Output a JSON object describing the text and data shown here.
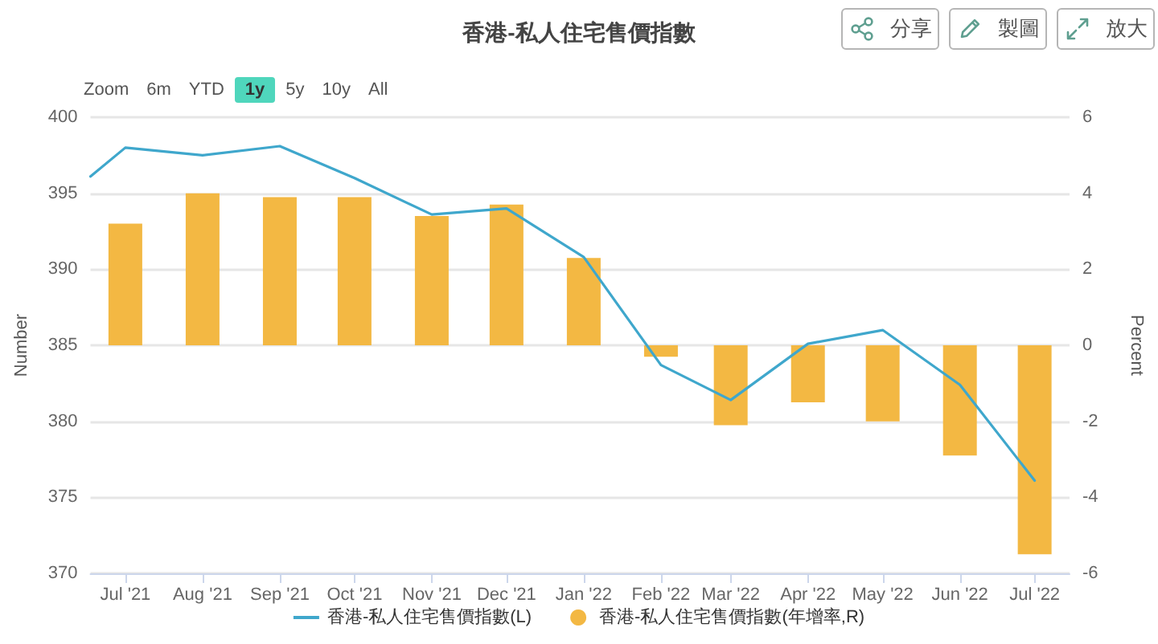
{
  "chart_data": {
    "type": "line",
    "title": "香港-私人住宅售價指數",
    "ylabel": "Number",
    "y2label": "Percent",
    "annotations": [
      "Zoom",
      "6m",
      "YTD",
      "1y",
      "5y",
      "10y",
      "All",
      "分享",
      "製圖",
      "放大"
    ],
    "x": [
      "2021-07",
      "2021-08",
      "2021-09",
      "2021-10",
      "2021-11",
      "2021-12",
      "2022-01",
      "2022-02",
      "2022-03",
      "2022-04",
      "2022-05",
      "2022-06",
      "2022-07"
    ],
    "series": [
      {
        "name": "香港-私人住宅售價指數(L)",
        "color": "#3fa7cc",
        "x": [
          "2021-06-17",
          "2021-07",
          "2021-08",
          "2021-09",
          "2021-10",
          "2021-11",
          "2021-12",
          "2022-01",
          "2022-02",
          "2022-03",
          "2022-04",
          "2022-05",
          "2022-06",
          "2022-07"
        ],
        "values": [
          396.1,
          398.0,
          397.5,
          398.1,
          396.0,
          393.6,
          394.0,
          390.8,
          383.7,
          381.4,
          385.1,
          386.0,
          382.4,
          376.1
        ]
      },
      {
        "name": "香港-私人住宅售價指數(年增率,R)",
        "type": "bar",
        "axis": "y2",
        "color": "#f3b843",
        "values": [
          3.2,
          4.0,
          3.9,
          3.9,
          3.4,
          3.7,
          2.3,
          -0.3,
          -2.1,
          -1.5,
          -2.0,
          -2.9,
          -5.5
        ]
      }
    ],
    "xlim": [
      "2021-06-17",
      "2022-07-15"
    ],
    "xticks": [
      {
        "value": "2021-07",
        "label": "Jul '21"
      },
      {
        "value": "2021-08",
        "label": "Aug '21"
      },
      {
        "value": "2021-09",
        "label": "Sep '21"
      },
      {
        "value": "2021-10",
        "label": "Oct '21"
      },
      {
        "value": "2021-11",
        "label": "Nov '21"
      },
      {
        "value": "2021-12",
        "label": "Dec '21"
      },
      {
        "value": "2022-01",
        "label": "Jan '22"
      },
      {
        "value": "2022-02",
        "label": "Feb '22"
      },
      {
        "value": "2022-03",
        "label": "Mar '22"
      },
      {
        "value": "2022-04",
        "label": "Apr '22"
      },
      {
        "value": "2022-05",
        "label": "May '22"
      },
      {
        "value": "2022-06",
        "label": "Jun '22"
      },
      {
        "value": "2022-07",
        "label": "Jul '22"
      }
    ],
    "ylim": [
      370,
      400
    ],
    "yticks": [
      370,
      375,
      380,
      385,
      390,
      395,
      400
    ],
    "y2lim": [
      -6,
      6
    ],
    "y2ticks": [
      -6,
      -4,
      -2,
      0,
      2,
      4,
      6
    ],
    "grid": "y",
    "legend": "bottom",
    "marker": "none",
    "line_style": "solid"
  }
}
